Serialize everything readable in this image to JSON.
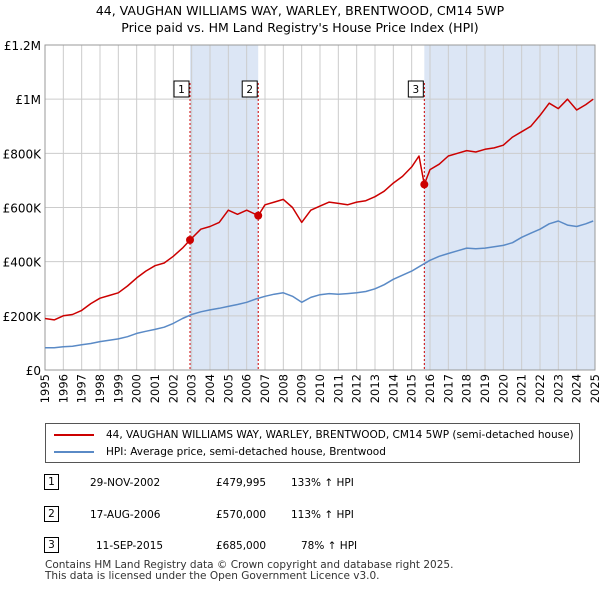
{
  "titles": {
    "line1": "44, VAUGHAN WILLIAMS WAY, WARLEY, BRENTWOOD, CM14 5WP",
    "line2": "Price paid vs. HM Land Registry's House Price Index (HPI)"
  },
  "colors": {
    "property": "#cc0000",
    "hpi": "#5a8ac6",
    "shade": "#dce6f5",
    "grid": "#cccccc",
    "marker_line": "#cc0000"
  },
  "chart_data": {
    "type": "line",
    "title": "44, VAUGHAN WILLIAMS WAY, WARLEY, BRENTWOOD, CM14 5WP - Price paid vs. HM Land Registry's House Price Index (HPI)",
    "xlim": [
      1995,
      2025
    ],
    "ylim": [
      0,
      1200000
    ],
    "x_ticks": [
      1995,
      1996,
      1997,
      1998,
      1999,
      2000,
      2001,
      2002,
      2003,
      2004,
      2005,
      2006,
      2007,
      2008,
      2009,
      2010,
      2011,
      2012,
      2013,
      2014,
      2015,
      2016,
      2017,
      2018,
      2019,
      2020,
      2021,
      2022,
      2023,
      2024,
      2025
    ],
    "y_ticks": [
      0,
      200000,
      400000,
      600000,
      800000,
      1000000,
      1200000
    ],
    "y_tick_labels": [
      "£0",
      "£200K",
      "£400K",
      "£600K",
      "£800K",
      "£1M",
      "£1.2M"
    ],
    "grid": true,
    "series": [
      {
        "name": "44, VAUGHAN WILLIAMS WAY, WARLEY, BRENTWOOD, CM14 5WP (semi-detached house)",
        "x": [
          1995.0,
          1995.5,
          1996.0,
          1996.5,
          1997.0,
          1997.5,
          1998.0,
          1998.5,
          1999.0,
          1999.5,
          2000.0,
          2000.5,
          2001.0,
          2001.5,
          2002.0,
          2002.5,
          2002.91,
          2003.5,
          2004.0,
          2004.5,
          2005.0,
          2005.5,
          2006.0,
          2006.63,
          2007.0,
          2007.5,
          2008.0,
          2008.5,
          2009.0,
          2009.5,
          2010.0,
          2010.5,
          2011.0,
          2011.5,
          2012.0,
          2012.5,
          2013.0,
          2013.5,
          2014.0,
          2014.5,
          2015.0,
          2015.4,
          2015.69,
          2016.0,
          2016.5,
          2017.0,
          2017.5,
          2018.0,
          2018.5,
          2019.0,
          2019.5,
          2020.0,
          2020.5,
          2021.0,
          2021.5,
          2022.0,
          2022.5,
          2023.0,
          2023.5,
          2024.0,
          2024.5,
          2024.9
        ],
        "values": [
          190000,
          185000,
          200000,
          205000,
          220000,
          245000,
          265000,
          275000,
          285000,
          310000,
          340000,
          365000,
          385000,
          395000,
          420000,
          450000,
          479995,
          520000,
          530000,
          545000,
          590000,
          575000,
          590000,
          570000,
          610000,
          620000,
          630000,
          600000,
          545000,
          590000,
          605000,
          620000,
          615000,
          610000,
          620000,
          625000,
          640000,
          660000,
          690000,
          715000,
          750000,
          790000,
          685000,
          740000,
          760000,
          790000,
          800000,
          810000,
          805000,
          815000,
          820000,
          830000,
          860000,
          880000,
          900000,
          940000,
          985000,
          965000,
          1000000,
          960000,
          980000,
          1000000
        ]
      },
      {
        "name": "HPI: Average price, semi-detached house, Brentwood",
        "x": [
          1995.0,
          1995.5,
          1996.0,
          1996.5,
          1997.0,
          1997.5,
          1998.0,
          1998.5,
          1999.0,
          1999.5,
          2000.0,
          2000.5,
          2001.0,
          2001.5,
          2002.0,
          2002.5,
          2003.0,
          2003.5,
          2004.0,
          2004.5,
          2005.0,
          2005.5,
          2006.0,
          2006.5,
          2007.0,
          2007.5,
          2008.0,
          2008.5,
          2009.0,
          2009.5,
          2010.0,
          2010.5,
          2011.0,
          2011.5,
          2012.0,
          2012.5,
          2013.0,
          2013.5,
          2014.0,
          2014.5,
          2015.0,
          2015.5,
          2016.0,
          2016.5,
          2017.0,
          2017.5,
          2018.0,
          2018.5,
          2019.0,
          2019.5,
          2020.0,
          2020.5,
          2021.0,
          2021.5,
          2022.0,
          2022.5,
          2023.0,
          2023.5,
          2024.0,
          2024.5,
          2024.9
        ],
        "values": [
          82000,
          82000,
          86000,
          88000,
          93000,
          98000,
          105000,
          110000,
          115000,
          123000,
          135000,
          143000,
          150000,
          158000,
          172000,
          190000,
          205000,
          215000,
          222000,
          228000,
          235000,
          242000,
          250000,
          262000,
          272000,
          280000,
          285000,
          272000,
          250000,
          268000,
          278000,
          282000,
          280000,
          282000,
          285000,
          290000,
          300000,
          315000,
          335000,
          350000,
          365000,
          385000,
          405000,
          420000,
          430000,
          440000,
          450000,
          448000,
          450000,
          455000,
          460000,
          470000,
          490000,
          505000,
          520000,
          540000,
          550000,
          535000,
          530000,
          540000,
          550000
        ]
      }
    ],
    "sales": [
      {
        "label": "1",
        "x": 2002.91,
        "value": 479995
      },
      {
        "label": "2",
        "x": 2006.63,
        "value": 570000
      },
      {
        "label": "3",
        "x": 2015.69,
        "value": 685000
      }
    ]
  },
  "legend": {
    "property": "44, VAUGHAN WILLIAMS WAY, WARLEY, BRENTWOOD, CM14 5WP (semi-detached house)",
    "hpi": "HPI: Average price, semi-detached house, Brentwood"
  },
  "transactions": [
    {
      "num": "1",
      "date": "29-NOV-2002",
      "price": "£479,995",
      "hpi": "133% ↑ HPI"
    },
    {
      "num": "2",
      "date": "17-AUG-2006",
      "price": "£570,000",
      "hpi": "113% ↑ HPI"
    },
    {
      "num": "3",
      "date": "11-SEP-2015",
      "price": "£685,000",
      "hpi": "78% ↑ HPI"
    }
  ],
  "footer": {
    "line1": "Contains HM Land Registry data © Crown copyright and database right 2025.",
    "line2": "This data is licensed under the Open Government Licence v3.0."
  }
}
